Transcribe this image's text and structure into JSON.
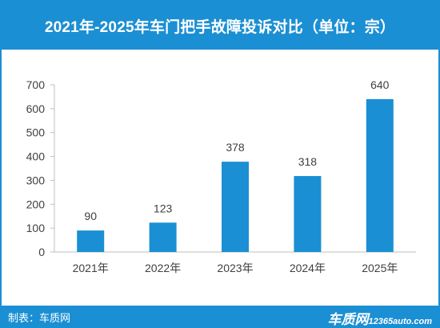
{
  "header": {
    "title": "2021年-2025年车门把手故障投诉对比（单位：宗）"
  },
  "footer": {
    "maker": "制表：车质网",
    "logo_text": "车质网",
    "logo_url": "12365auto.com"
  },
  "colors": {
    "accent": "#1b8fd3",
    "bar": "#1b8fd3",
    "axis": "#bfbfbf",
    "text": "#404040"
  },
  "chart_data": {
    "type": "bar",
    "categories": [
      "2021年",
      "2022年",
      "2023年",
      "2024年",
      "2025年"
    ],
    "values": [
      90,
      123,
      378,
      318,
      640
    ],
    "ylim": [
      0,
      700
    ],
    "yticks": [
      0,
      100,
      200,
      300,
      400,
      500,
      600,
      700
    ],
    "grid": false,
    "data_labels": true
  }
}
